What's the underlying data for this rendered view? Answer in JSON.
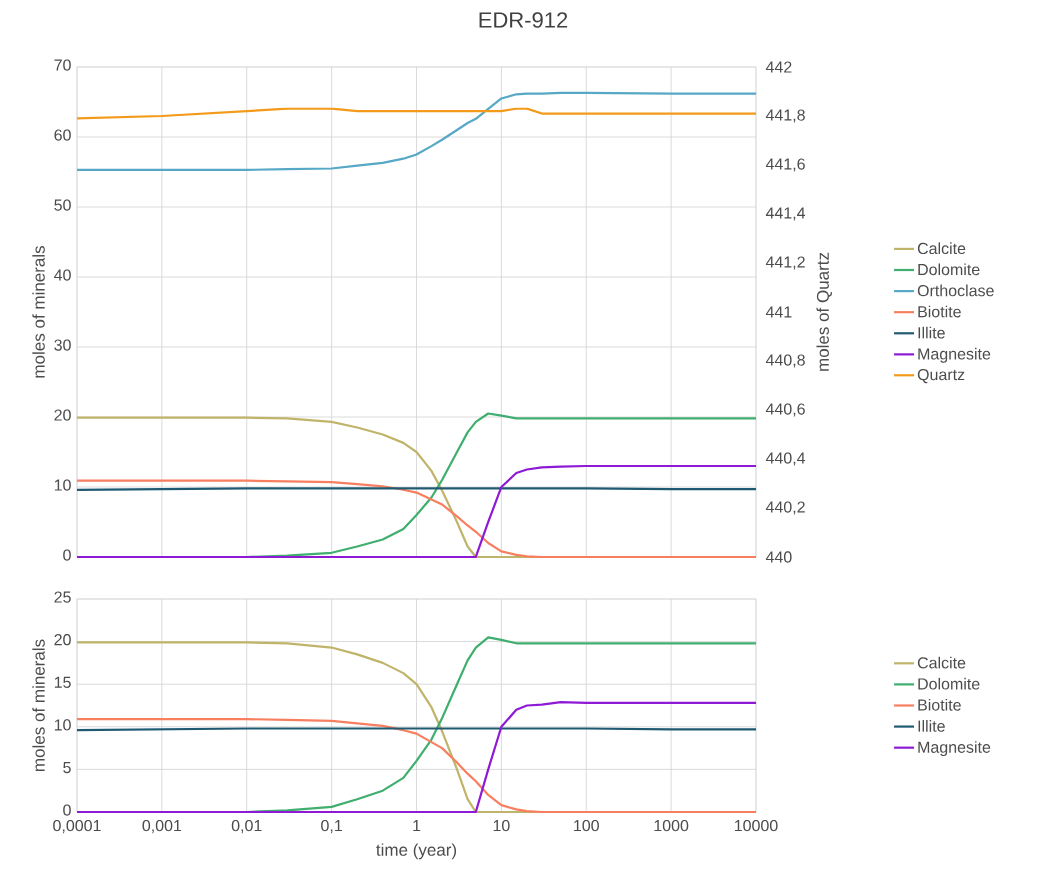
{
  "chart_data": [
    {
      "type": "line",
      "title": "EDR-912",
      "ylabel": "moles of minerals",
      "y2label": "moles of Quartz",
      "x": [
        0.0001,
        0.001,
        0.01,
        0.03,
        0.1,
        0.2,
        0.4,
        0.7,
        1,
        1.5,
        2,
        3,
        4,
        5,
        7,
        10,
        15,
        20,
        30,
        50,
        100,
        1000,
        10000
      ],
      "xlim": [
        0.0001,
        10000
      ],
      "xticks": [
        {
          "value": 0.0001,
          "label": null
        },
        {
          "value": 0.001,
          "label": null
        },
        {
          "value": 0.01,
          "label": null
        },
        {
          "value": 0.1,
          "label": null
        },
        {
          "value": 1,
          "label": null
        },
        {
          "value": 10,
          "label": null
        },
        {
          "value": 100,
          "label": null
        },
        {
          "value": 1000,
          "label": null
        },
        {
          "value": 10000,
          "label": null
        }
      ],
      "ylim": [
        0,
        70
      ],
      "yticks": [
        0,
        10,
        20,
        30,
        40,
        50,
        60,
        70
      ],
      "y2lim": [
        440,
        442
      ],
      "y2ticks": [
        440,
        {
          "value": 440.2,
          "label": "440,2"
        },
        {
          "value": 440.4,
          "label": "440,4"
        },
        {
          "value": 440.6,
          "label": "440,6"
        },
        {
          "value": 440.8,
          "label": "440,8"
        },
        441,
        {
          "value": 441.2,
          "label": "441,2"
        },
        {
          "value": 441.4,
          "label": "441,4"
        },
        {
          "value": 441.6,
          "label": "441,6"
        },
        {
          "value": 441.8,
          "label": "441,8"
        },
        442
      ],
      "grid": true,
      "log": "x",
      "legend": "right",
      "tick_labels": "y",
      "line_style": "solid",
      "series": [
        {
          "name": "Calcite",
          "color": "#c0b46a",
          "values": [
            19.9,
            19.9,
            19.9,
            19.8,
            19.3,
            18.5,
            17.5,
            16.3,
            15,
            12.3,
            9.5,
            5,
            1.5,
            0,
            0,
            0,
            0,
            0,
            0,
            0,
            null,
            null,
            null
          ]
        },
        {
          "name": "Dolomite",
          "color": "#3fae6e",
          "values": [
            0,
            0,
            0,
            0.2,
            0.6,
            1.5,
            2.5,
            4,
            6,
            8.5,
            11,
            15,
            17.8,
            19.3,
            20.5,
            20.2,
            19.8,
            19.8,
            19.8,
            19.8,
            19.8,
            19.8,
            19.8
          ]
        },
        {
          "name": "Orthoclase",
          "color": "#56a8c6",
          "values": [
            55.3,
            55.3,
            55.3,
            55.4,
            55.5,
            55.9,
            56.3,
            56.9,
            57.5,
            58.7,
            59.6,
            61,
            62,
            62.6,
            64,
            65.5,
            66.1,
            66.2,
            66.2,
            66.3,
            66.3,
            66.2,
            66.2
          ]
        },
        {
          "name": "Biotite",
          "color": "#f77f5f",
          "values": [
            10.9,
            10.9,
            10.9,
            10.8,
            10.7,
            10.4,
            10.1,
            9.6,
            9.2,
            8.2,
            7.5,
            5.8,
            4.5,
            3.6,
            2,
            0.8,
            0.3,
            0.1,
            0,
            0,
            0,
            0,
            0
          ]
        },
        {
          "name": "Illite",
          "color": "#1f5a72",
          "values": [
            9.6,
            9.7,
            9.8,
            9.8,
            9.8,
            9.8,
            9.8,
            9.8,
            9.8,
            9.8,
            9.8,
            9.8,
            9.8,
            9.8,
            9.8,
            9.8,
            9.8,
            9.8,
            9.8,
            9.8,
            9.8,
            9.7,
            9.7
          ]
        },
        {
          "name": "Magnesite",
          "color": "#8f1ad6",
          "values": [
            0,
            0,
            0,
            0,
            0,
            0,
            0,
            0,
            0,
            0,
            0,
            0,
            0,
            0,
            5,
            10,
            12,
            12.5,
            12.8,
            12.9,
            13,
            13,
            13
          ]
        },
        {
          "name": "Quartz",
          "color": "#f39a1a",
          "axis": "y2",
          "values": [
            441.79,
            441.8,
            441.82,
            441.83,
            441.83,
            441.82,
            441.82,
            441.82,
            441.82,
            441.82,
            441.82,
            441.82,
            441.82,
            441.82,
            441.82,
            441.82,
            441.83,
            441.83,
            441.81,
            441.81,
            441.81,
            441.81,
            441.81
          ]
        }
      ]
    },
    {
      "type": "line",
      "xlabel": "time (year)",
      "ylabel": "moles of minerals",
      "x": [
        0.0001,
        0.001,
        0.01,
        0.03,
        0.1,
        0.2,
        0.4,
        0.7,
        1,
        1.5,
        2,
        3,
        4,
        5,
        7,
        10,
        15,
        20,
        30,
        50,
        100,
        1000,
        10000
      ],
      "xlim": [
        0.0001,
        10000
      ],
      "xticks": [
        {
          "value": 0.0001,
          "label": "0,0001"
        },
        {
          "value": 0.001,
          "label": "0,001"
        },
        {
          "value": 0.01,
          "label": "0,01"
        },
        {
          "value": 0.1,
          "label": "0,1"
        },
        1,
        10,
        100,
        1000,
        10000
      ],
      "ylim": [
        0,
        25
      ],
      "yticks": [
        0,
        5,
        10,
        15,
        20,
        25
      ],
      "grid": true,
      "log": "x",
      "legend": "right",
      "line_style": "solid",
      "series": [
        {
          "name": "Calcite",
          "color": "#c0b46a",
          "values": [
            19.9,
            19.9,
            19.9,
            19.8,
            19.3,
            18.5,
            17.5,
            16.3,
            15,
            12.3,
            9.5,
            5,
            1.5,
            0,
            0,
            0,
            0,
            0,
            0,
            0,
            null,
            null,
            null
          ]
        },
        {
          "name": "Dolomite",
          "color": "#3fae6e",
          "values": [
            0,
            0,
            0,
            0.2,
            0.6,
            1.5,
            2.5,
            4,
            6,
            8.5,
            11,
            15,
            17.8,
            19.3,
            20.5,
            20.2,
            19.8,
            19.8,
            19.8,
            19.8,
            19.8,
            19.8,
            19.8
          ]
        },
        {
          "name": "Biotite",
          "color": "#f77f5f",
          "values": [
            10.9,
            10.9,
            10.9,
            10.8,
            10.7,
            10.4,
            10.1,
            9.6,
            9.2,
            8.2,
            7.5,
            5.8,
            4.5,
            3.6,
            2,
            0.8,
            0.3,
            0.1,
            0,
            0,
            0,
            0,
            0
          ]
        },
        {
          "name": "Illite",
          "color": "#1f5a72",
          "values": [
            9.6,
            9.7,
            9.8,
            9.8,
            9.8,
            9.8,
            9.8,
            9.8,
            9.8,
            9.8,
            9.8,
            9.8,
            9.8,
            9.8,
            9.8,
            9.8,
            9.8,
            9.8,
            9.8,
            9.8,
            9.8,
            9.7,
            9.7
          ]
        },
        {
          "name": "Magnesite",
          "color": "#8f1ad6",
          "values": [
            0,
            0,
            0,
            0,
            0,
            0,
            0,
            0,
            0,
            0,
            0,
            0,
            0,
            0,
            5,
            10,
            12,
            12.5,
            12.6,
            12.9,
            12.8,
            12.8,
            12.8
          ]
        }
      ]
    }
  ]
}
